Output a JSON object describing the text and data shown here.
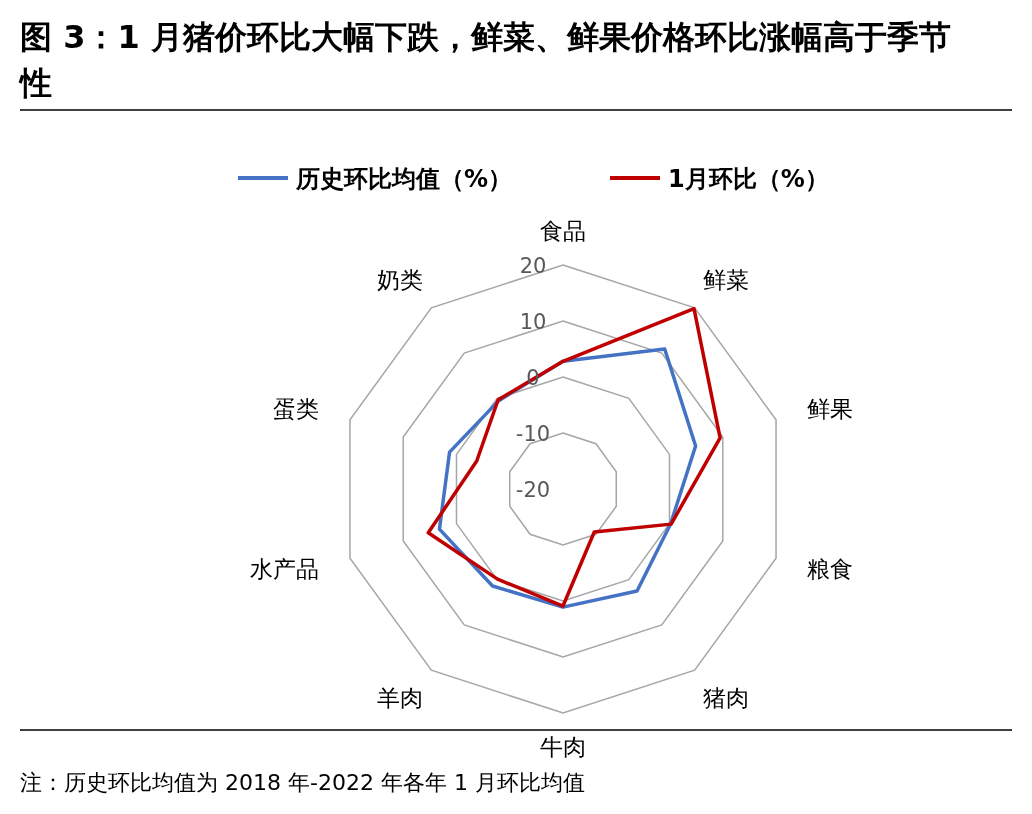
{
  "chart_data": {
    "type": "radar",
    "title": "图 3：1 月猪价环比大幅下跌，鲜菜、鲜果价格环比涨幅高于季节性",
    "categories": [
      "食品",
      "鲜菜",
      "鲜果",
      "粮食",
      "猪肉",
      "牛肉",
      "羊肉",
      "水产品",
      "蛋类",
      "奶类"
    ],
    "series": [
      {
        "name": "历史环比均值（%）",
        "color": "#4472c4",
        "values": [
          2.8,
          10.9,
          4.9,
          0.2,
          2.5,
          1.1,
          1.4,
          3.2,
          1.3,
          -0.5
        ]
      },
      {
        "name": "1月环比（%）",
        "color": "#c00000",
        "values": [
          2.8,
          19.8,
          9.5,
          0.3,
          -10.5,
          0.9,
          -0.1,
          5.3,
          -3.8,
          -0.3
        ]
      }
    ],
    "ylim": [
      -20,
      20
    ],
    "yticks": [
      -20,
      -10,
      0,
      10,
      20
    ],
    "grid": true,
    "legend": "top",
    "annotations": [
      "注：历史环比均值为 2018 年-2022 年各年 1 月环比均值"
    ]
  }
}
